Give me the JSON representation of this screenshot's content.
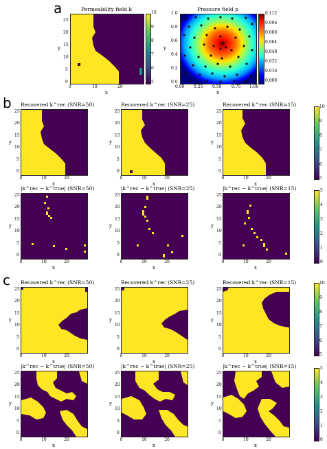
{
  "labels": {
    "a": "a",
    "b": "b",
    "c": "c"
  },
  "row_a": {
    "perm_title": "Permeability field k",
    "pres_title": "Pressure field p",
    "perm_yticks": [
      "25",
      "20",
      "15",
      "10",
      "5",
      "0"
    ],
    "perm_xticks": [
      "0",
      "10",
      "20"
    ],
    "perm_cbar_ticks": [
      "10",
      "9",
      "8",
      "7",
      "6",
      "5"
    ],
    "pres_yticks": [
      "1.0",
      "0.8",
      "0.6",
      "0.4",
      "0.2",
      "0.0"
    ],
    "pres_xticks": [
      "0.00",
      "0.25",
      "0.50",
      "0.75",
      "1.00"
    ],
    "pres_cbar_ticks": [
      "0.112",
      "0.096",
      "0.080",
      "0.064",
      "0.048",
      "0.032",
      "0.016",
      "0.000"
    ],
    "xlabel": "x",
    "ylabel": "y"
  },
  "b": {
    "rec_titles": [
      "Recovered k^rec (SNR=50)",
      "Recovered k^rec (SNR=25)",
      "Recovered k^rec (SNR=15)"
    ],
    "err_titles": [
      "|k^rec − k^true| (SNR=50)",
      "|k^rec − k^true| (SNR=25)",
      "|k^rec − k^true| (SNR=15)"
    ],
    "rec_cbar_ticks": [
      "10",
      "9",
      "8",
      "7",
      "6",
      "5"
    ],
    "err_cbar_ticks": [
      "5",
      "4",
      "3",
      "2",
      "1",
      "0"
    ]
  },
  "c": {
    "rec_titles": [
      "Recovered k^rec (SNR=50)",
      "Recovered k^rec (SNR=25)",
      "Recovered k^rec (SNR=15)"
    ],
    "err_titles": [
      "|k^rec − k^true| (SNR=50)",
      "|k^rec − k^true| (SNR=25)",
      "|k^rec − k^true| (SNR=15)"
    ],
    "rec_cbar_ticks": [
      "10",
      "9",
      "8",
      "7",
      "6",
      "5"
    ],
    "err_cbar_ticks": [
      "5",
      "4",
      "3",
      "2",
      "1",
      "0"
    ]
  },
  "panel_axes": {
    "yticks": [
      "25",
      "20",
      "15",
      "10",
      "5",
      "0"
    ],
    "xticks": [
      "0",
      "10",
      "20"
    ],
    "xlabel": "x",
    "ylabel": "y"
  },
  "colors": {
    "low": "#440154",
    "high": "#fde725"
  }
}
